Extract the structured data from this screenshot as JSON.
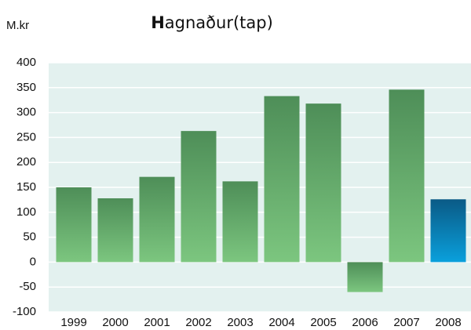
{
  "chart_data": {
    "type": "bar",
    "title": "Hagnaður(tap)",
    "y_label": "M.kr",
    "categories": [
      "1999",
      "2000",
      "2001",
      "2002",
      "2003",
      "2004",
      "2005",
      "2006",
      "2007",
      "2008"
    ],
    "values": [
      150,
      128,
      171,
      263,
      162,
      333,
      318,
      -60,
      346,
      126
    ],
    "colors": [
      "#4e8e58",
      "#4e8e58",
      "#4e8e58",
      "#4e8e58",
      "#4e8e58",
      "#4e8e58",
      "#4e8e58",
      "#4e8e58",
      "#4e8e58",
      "#0a5a86"
    ],
    "colors_light": [
      "#7cc67f",
      "#7cc67f",
      "#7cc67f",
      "#7cc67f",
      "#7cc67f",
      "#7cc67f",
      "#7cc67f",
      "#7cc67f",
      "#7cc67f",
      "#0aa0dc"
    ],
    "ylim": [
      -100,
      400
    ],
    "yticks": [
      -100,
      -50,
      0,
      50,
      100,
      150,
      200,
      250,
      300,
      350,
      400
    ],
    "grid": true
  }
}
